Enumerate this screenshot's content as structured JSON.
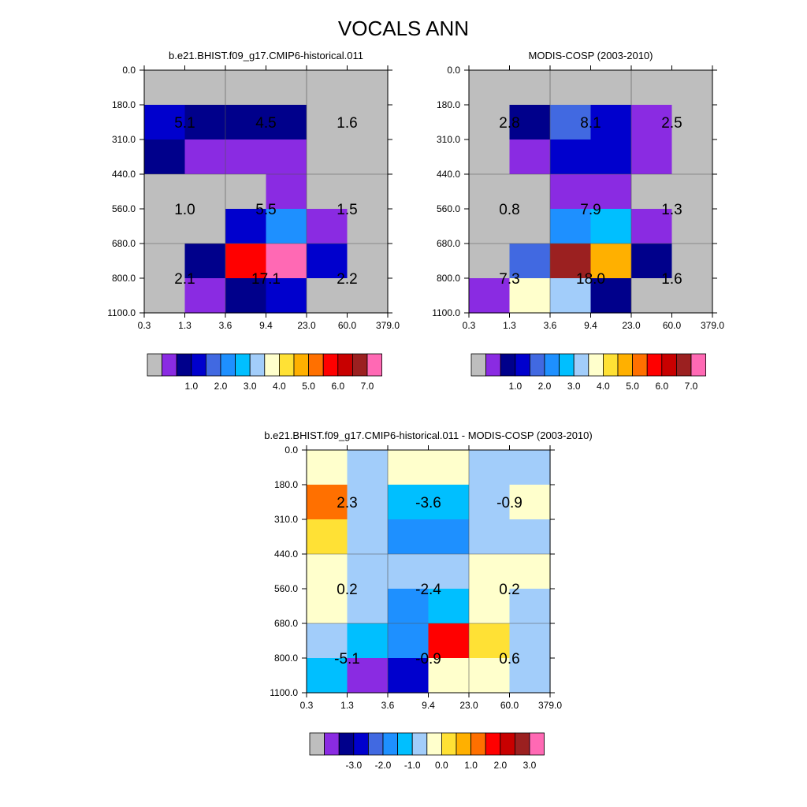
{
  "title": "VOCALS ANN",
  "colors": {
    "missing": "#BEBEBE",
    "palette": [
      "#BEBEBE",
      "#8A2BE2",
      "#00008B",
      "#0000CD",
      "#4169E1",
      "#1E90FF",
      "#00BFFF",
      "#A2CDFA",
      "#FFFFCC",
      "#FFE135",
      "#FFB000",
      "#FF7000",
      "#FF0000",
      "#C80000",
      "#9B2020",
      "#FF69B4"
    ]
  },
  "chart_data": [
    {
      "type": "heatmap",
      "title": "b.e21.BHIST.f09_g17.CMIP6-historical.011",
      "x_ticks": [
        "0.3",
        "1.3",
        "3.6",
        "9.4",
        "23.0",
        "60.0",
        "379.0"
      ],
      "y_ticks": [
        "0.0",
        "180.0",
        "310.0",
        "440.0",
        "560.0",
        "680.0",
        "800.0",
        "1100.0"
      ],
      "cell_color_index": [
        [
          0,
          0,
          0,
          0,
          0,
          0
        ],
        [
          3,
          2,
          2,
          2,
          0,
          0
        ],
        [
          2,
          1,
          1,
          1,
          0,
          0
        ],
        [
          0,
          0,
          0,
          1,
          0,
          0
        ],
        [
          0,
          0,
          3,
          5,
          1,
          0
        ],
        [
          0,
          2,
          12,
          15,
          3,
          0
        ],
        [
          0,
          1,
          2,
          3,
          0,
          0
        ]
      ],
      "group_values": [
        {
          "row": 0,
          "col": 0,
          "text": "5.1"
        },
        {
          "row": 0,
          "col": 1,
          "text": "4.5"
        },
        {
          "row": 0,
          "col": 2,
          "text": "1.6"
        },
        {
          "row": 1,
          "col": 0,
          "text": "1.0"
        },
        {
          "row": 1,
          "col": 1,
          "text": "5.5"
        },
        {
          "row": 1,
          "col": 2,
          "text": "1.5"
        },
        {
          "row": 2,
          "col": 0,
          "text": "2.1"
        },
        {
          "row": 2,
          "col": 1,
          "text": "17.1"
        },
        {
          "row": 2,
          "col": 2,
          "text": "2.2"
        }
      ],
      "colorbar_labels": [
        "1.0",
        "2.0",
        "3.0",
        "4.0",
        "5.0",
        "6.0",
        "7.0"
      ]
    },
    {
      "type": "heatmap",
      "title": "MODIS-COSP (2003-2010)",
      "x_ticks": [
        "0.3",
        "1.3",
        "3.6",
        "9.4",
        "23.0",
        "60.0",
        "379.0"
      ],
      "y_ticks": [
        "0.0",
        "180.0",
        "310.0",
        "440.0",
        "560.0",
        "680.0",
        "800.0",
        "1100.0"
      ],
      "cell_color_index": [
        [
          0,
          0,
          0,
          0,
          0,
          0
        ],
        [
          0,
          2,
          4,
          3,
          1,
          0
        ],
        [
          0,
          1,
          3,
          3,
          1,
          0
        ],
        [
          0,
          0,
          1,
          1,
          0,
          0
        ],
        [
          0,
          0,
          5,
          6,
          1,
          0
        ],
        [
          0,
          4,
          14,
          10,
          2,
          0
        ],
        [
          1,
          8,
          7,
          2,
          0,
          0
        ]
      ],
      "group_values": [
        {
          "row": 0,
          "col": 0,
          "text": "2.8"
        },
        {
          "row": 0,
          "col": 1,
          "text": "8.1"
        },
        {
          "row": 0,
          "col": 2,
          "text": "2.5"
        },
        {
          "row": 1,
          "col": 0,
          "text": "0.8"
        },
        {
          "row": 1,
          "col": 1,
          "text": "7.9"
        },
        {
          "row": 1,
          "col": 2,
          "text": "1.3"
        },
        {
          "row": 2,
          "col": 0,
          "text": "7.3"
        },
        {
          "row": 2,
          "col": 1,
          "text": "18.0"
        },
        {
          "row": 2,
          "col": 2,
          "text": "1.6"
        }
      ],
      "colorbar_labels": [
        "1.0",
        "2.0",
        "3.0",
        "4.0",
        "5.0",
        "6.0",
        "7.0"
      ]
    },
    {
      "type": "heatmap",
      "title": "b.e21.BHIST.f09_g17.CMIP6-historical.011 - MODIS-COSP (2003-2010)",
      "x_ticks": [
        "0.3",
        "1.3",
        "3.6",
        "9.4",
        "23.0",
        "60.0",
        "379.0"
      ],
      "y_ticks": [
        "0.0",
        "180.0",
        "310.0",
        "440.0",
        "560.0",
        "680.0",
        "800.0",
        "1100.0"
      ],
      "cell_color_index": [
        [
          8,
          7,
          8,
          8,
          7,
          7
        ],
        [
          11,
          7,
          6,
          6,
          7,
          8
        ],
        [
          9,
          7,
          5,
          5,
          7,
          7
        ],
        [
          8,
          7,
          7,
          7,
          8,
          8
        ],
        [
          8,
          7,
          5,
          6,
          8,
          7
        ],
        [
          7,
          6,
          5,
          12,
          9,
          7
        ],
        [
          6,
          1,
          3,
          8,
          8,
          7
        ]
      ],
      "group_values": [
        {
          "row": 0,
          "col": 0,
          "text": "2.3"
        },
        {
          "row": 0,
          "col": 1,
          "text": "-3.6"
        },
        {
          "row": 0,
          "col": 2,
          "text": "-0.9"
        },
        {
          "row": 1,
          "col": 0,
          "text": "0.2"
        },
        {
          "row": 1,
          "col": 1,
          "text": "-2.4"
        },
        {
          "row": 1,
          "col": 2,
          "text": "0.2"
        },
        {
          "row": 2,
          "col": 0,
          "text": "-5.1"
        },
        {
          "row": 2,
          "col": 1,
          "text": "-0.9"
        },
        {
          "row": 2,
          "col": 2,
          "text": "0.6"
        }
      ],
      "colorbar_labels": [
        "-3.0",
        "-2.0",
        "-1.0",
        "0.0",
        "1.0",
        "2.0",
        "3.0"
      ]
    }
  ]
}
